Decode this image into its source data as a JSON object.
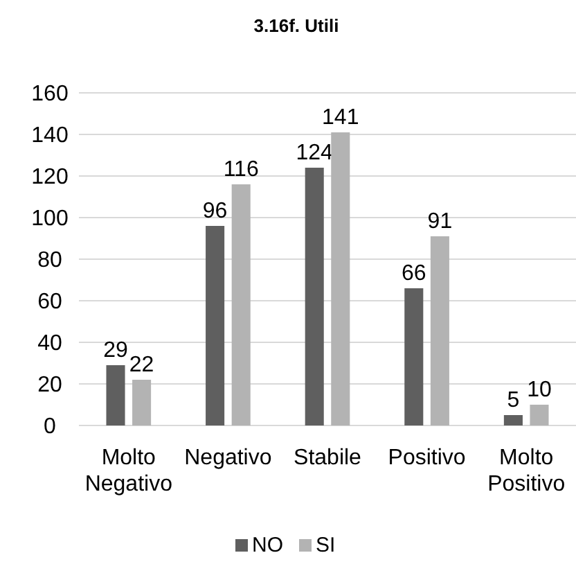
{
  "chart_data": {
    "type": "bar",
    "title": "3.16f. Utili",
    "categories": [
      "Molto Negativo",
      "Negativo",
      "Stabile",
      "Positivo",
      "Molto Positivo"
    ],
    "series": [
      {
        "name": "NO",
        "color": "#5f5f5f",
        "values": [
          29,
          96,
          124,
          66,
          5
        ]
      },
      {
        "name": "SI",
        "color": "#b3b3b3",
        "values": [
          22,
          116,
          141,
          91,
          10
        ]
      }
    ],
    "ylim": [
      0,
      160
    ],
    "yticks": [
      0,
      20,
      40,
      60,
      80,
      100,
      120,
      140,
      160
    ],
    "grid": "y",
    "legend": "bottom",
    "data_labels": true
  }
}
